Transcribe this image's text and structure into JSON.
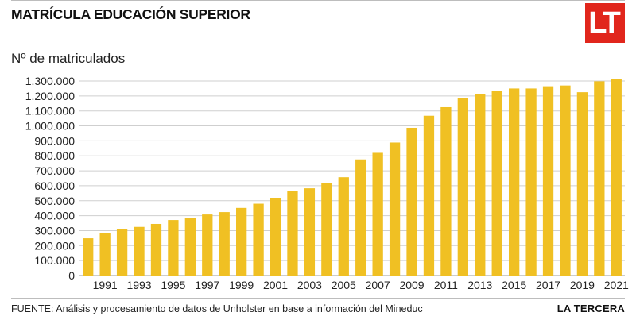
{
  "header": {
    "title": "MATRÍCULA EDUCACIÓN SUPERIOR",
    "logo_text": "LT",
    "logo_color": "#e1261c"
  },
  "footer": {
    "source": "FUENTE: Análisis y procesamiento de datos de Unholster en base a información del Mineduc",
    "brand": "LA TERCERA"
  },
  "chart_data": {
    "type": "bar",
    "title": "MATRÍCULA EDUCACIÓN SUPERIOR",
    "ylabel": "Nº de matriculados",
    "xlabel": "",
    "ylim": [
      0,
      1300000
    ],
    "yticks": [
      0,
      100000,
      200000,
      300000,
      400000,
      500000,
      600000,
      700000,
      800000,
      900000,
      1000000,
      1100000,
      1200000,
      1300000
    ],
    "ytick_labels": [
      "0",
      "100.000",
      "200.000",
      "300.000",
      "400.000",
      "500.000",
      "600.000",
      "700.000",
      "800.000",
      "900.000",
      "1.000.000",
      "1.100.000",
      "1.200.000",
      "1.300.000"
    ],
    "grid": true,
    "bar_color": "#f0c023",
    "categories": [
      "1990",
      "1991",
      "1992",
      "1993",
      "1994",
      "1995",
      "1996",
      "1997",
      "1998",
      "1999",
      "2000",
      "2001",
      "2002",
      "2003",
      "2004",
      "2005",
      "2006",
      "2007",
      "2008",
      "2009",
      "2010",
      "2011",
      "2012",
      "2013",
      "2014",
      "2015",
      "2016",
      "2017",
      "2018",
      "2019",
      "2020",
      "2021"
    ],
    "xtick_labels": [
      "1991",
      "1993",
      "1995",
      "1997",
      "1999",
      "2001",
      "2003",
      "2005",
      "2007",
      "2009",
      "2011",
      "2013",
      "2015",
      "2017",
      "2019",
      "2021"
    ],
    "values": [
      249000,
      283000,
      313000,
      325000,
      345000,
      371000,
      382000,
      408000,
      424000,
      452000,
      480000,
      520000,
      563000,
      583000,
      618000,
      657000,
      776000,
      820000,
      889000,
      987000,
      1068000,
      1125000,
      1185000,
      1215000,
      1235000,
      1250000,
      1250000,
      1265000,
      1270000,
      1225000,
      1298000,
      1315000
    ]
  }
}
